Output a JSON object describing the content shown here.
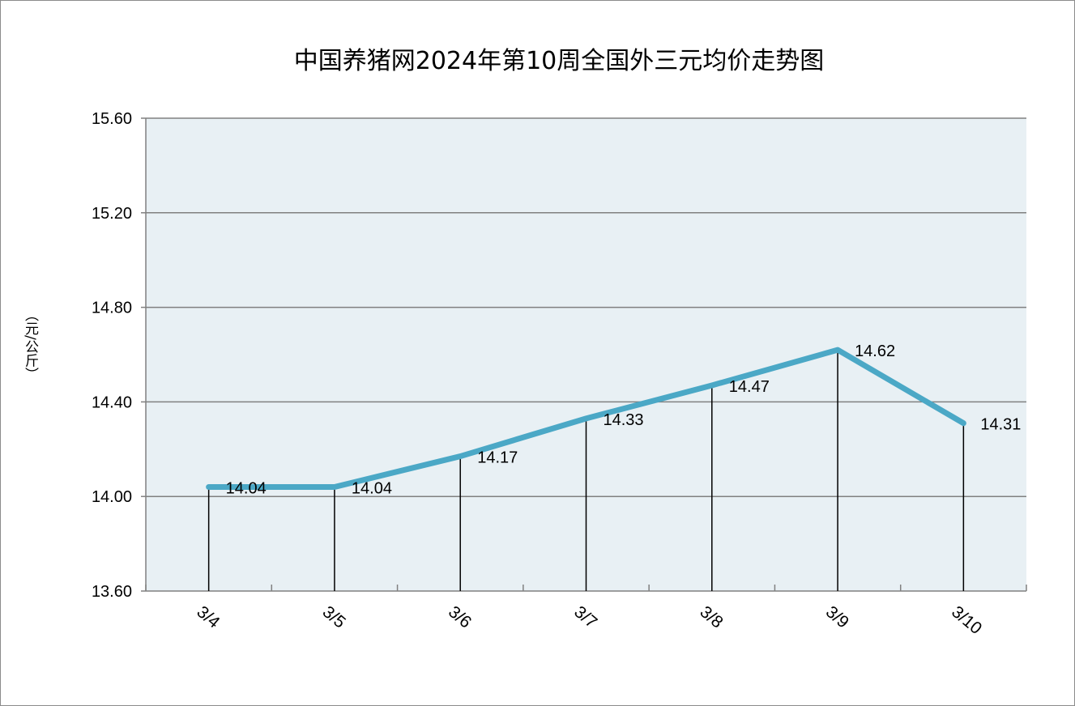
{
  "chart_data": {
    "type": "line",
    "title": "中国养猪网2024年第10周全国外三元均价走势图",
    "ylabel": "（元/公斤）",
    "xlabel": "",
    "categories": [
      "3/4",
      "3/5",
      "3/6",
      "3/7",
      "3/8",
      "3/9",
      "3/10"
    ],
    "series": [
      {
        "values": [
          14.04,
          14.04,
          14.17,
          14.33,
          14.47,
          14.62,
          14.31
        ]
      }
    ],
    "data_labels": [
      "14.04",
      "14.04",
      "14.17",
      "14.33",
      "14.47",
      "14.62",
      "14.31"
    ],
    "ylim": [
      13.6,
      15.6
    ],
    "yticks": [
      "13.60",
      "14.00",
      "14.40",
      "14.80",
      "15.20",
      "15.60"
    ],
    "grid": true,
    "drop_lines": true,
    "colors": {
      "line": "#4BA8C6",
      "plot_background": "#E8F0F4",
      "grid": "#808080",
      "drop_line": "#000000"
    }
  }
}
